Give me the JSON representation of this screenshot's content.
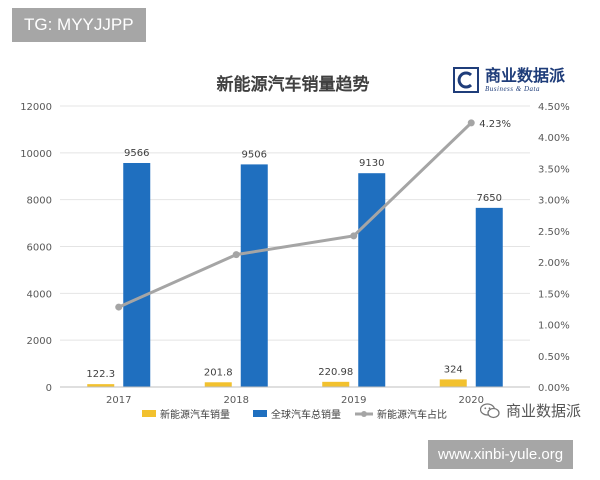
{
  "watermark": {
    "tag": "TG: MYYJJPP",
    "url": "www.xinbi-yule.org"
  },
  "brand": {
    "name": "商业数据派",
    "subtitle": "Business & Data",
    "wechat_name": "商业数据派",
    "color": "#1f3d7a"
  },
  "chart_data": {
    "type": "bar",
    "title": "新能源汽车销量趋势",
    "categories": [
      "2017",
      "2018",
      "2019",
      "2020"
    ],
    "series": [
      {
        "name": "新能源汽车销量",
        "kind": "bar",
        "axis": "left",
        "color": "#f2c12e",
        "values": [
          122.3,
          201.8,
          220.98,
          324
        ],
        "labels": [
          "122.3",
          "201.8",
          "220.98",
          "324"
        ]
      },
      {
        "name": "全球汽车总销量",
        "kind": "bar",
        "axis": "left",
        "color": "#1f6fbf",
        "values": [
          9566,
          9506,
          9130,
          7650
        ],
        "labels": [
          "9566",
          "9506",
          "9130",
          "7650"
        ]
      },
      {
        "name": "新能源汽车占比",
        "kind": "line",
        "axis": "right",
        "color": "#a5a5a5",
        "values": [
          1.28,
          2.12,
          2.42,
          4.23
        ],
        "labels": [
          "",
          "",
          "",
          "4.23%"
        ]
      }
    ],
    "y_left": {
      "min": 0,
      "max": 12000,
      "ticks": [
        "0",
        "2000",
        "4000",
        "6000",
        "8000",
        "10000",
        "12000"
      ]
    },
    "y_right": {
      "min": 0,
      "max": 4.5,
      "ticks": [
        "0.00%",
        "0.50%",
        "1.00%",
        "1.50%",
        "2.00%",
        "2.50%",
        "3.00%",
        "3.50%",
        "4.00%",
        "4.50%"
      ]
    },
    "grid": true,
    "legend_position": "bottom"
  }
}
